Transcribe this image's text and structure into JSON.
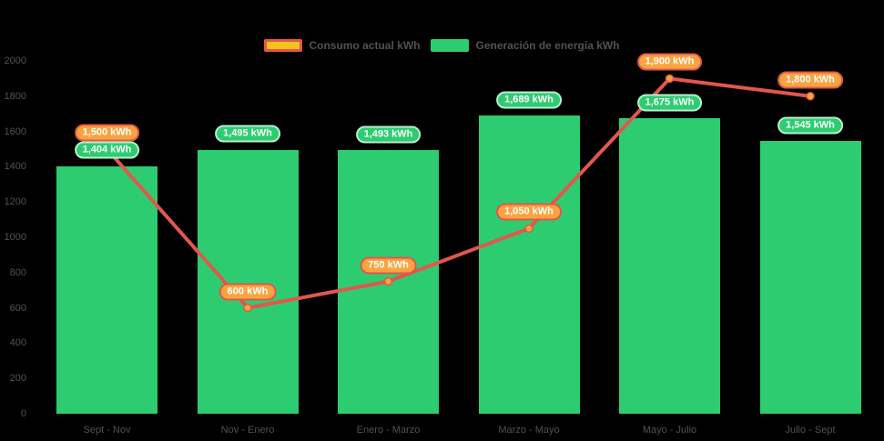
{
  "app": {
    "background": "#000000"
  },
  "legend": {
    "text_color": "#525252",
    "items": [
      {
        "label": "Consumo actual kWh",
        "swatch_fill": "#f0c419",
        "swatch_border": "#e2574c"
      },
      {
        "label": "Generación de energía kWh",
        "swatch_fill": "#2ecc71",
        "swatch_border": "#2ecc71"
      }
    ]
  },
  "chart_data": {
    "type": "combo-bar-line",
    "categories": [
      "Sept - Nov",
      "Nov - Enero",
      "Enero - Marzo",
      "Marzo - Mayo",
      "Mayo - Julio",
      "Julio - Sept"
    ],
    "series": [
      {
        "name": "Generación de energía kWh",
        "type": "bar",
        "color": "#2ecc71",
        "values": [
          1404,
          1495,
          1493,
          1689,
          1675,
          1545
        ],
        "data_labels": [
          "1,404 kWh",
          "1,495 kWh",
          "1,493 kWh",
          "1,689 kWh",
          "1,675 kWh",
          "1,545 kWh"
        ],
        "label_bg": "#2ecc71",
        "label_border": "#b9edcd",
        "label_text_color": "#ffffff"
      },
      {
        "name": "Consumo actual kWh",
        "type": "line",
        "color": "#e2574c",
        "marker_fill": "#f9a43f",
        "marker_border": "#e2574c",
        "values": [
          1500,
          600,
          750,
          1050,
          1900,
          1800
        ],
        "data_labels": [
          "1,500 kWh",
          "600 kWh",
          "750 kWh",
          "1,050 kWh",
          "1,900 kWh",
          "1,800 kWh"
        ],
        "label_bg": "#f9a43f",
        "label_border": "#e2574c",
        "label_text_color": "#ffffff"
      }
    ],
    "ylim": [
      0,
      2000
    ],
    "ytick_values": [
      2000,
      1800,
      1600,
      1400,
      1200,
      1000,
      800,
      600,
      400,
      200,
      0
    ],
    "ytick_labels": [
      "2000",
      "1800",
      "1600",
      "1400",
      "1200",
      "1000",
      "800",
      "600",
      "400",
      "200",
      "0"
    ],
    "axis_text_color": "#525252",
    "grid": false,
    "legend_position": "top-center"
  }
}
